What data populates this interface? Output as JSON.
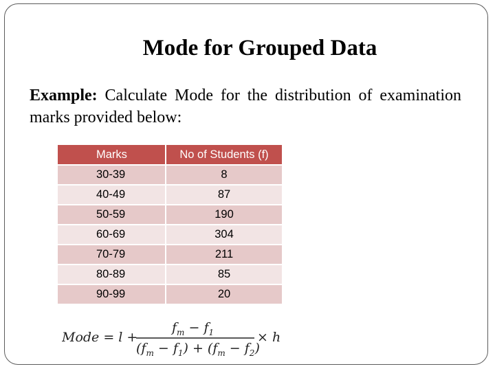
{
  "slide": {
    "title": "Mode for Grouped Data",
    "example_lead": "Example:",
    "example_text": " Calculate Mode for the distribution of examination marks provided below:"
  },
  "table": {
    "headers": [
      "Marks",
      "No of Students (f)"
    ],
    "rows": [
      {
        "marks": "30-39",
        "students": "8"
      },
      {
        "marks": "40-49",
        "students": "87"
      },
      {
        "marks": "50-59",
        "students": "190"
      },
      {
        "marks": "60-69",
        "students": "304"
      },
      {
        "marks": "70-79",
        "students": "211"
      },
      {
        "marks": "80-89",
        "students": "85"
      },
      {
        "marks": "90-99",
        "students": "20"
      }
    ]
  },
  "formula": {
    "lhs": "Mode = l +",
    "numerator_a": "f",
    "numerator_a_sub": "m",
    "numerator_op": " − ",
    "numerator_b": "f",
    "numerator_b_sub": "1",
    "den_open1": "(f",
    "den_sub1": "m",
    "den_mid1": " − f",
    "den_sub2": "1",
    "den_close1": ") + (f",
    "den_sub3": "m",
    "den_mid2": " − f",
    "den_sub4": "2",
    "den_close2": ")",
    "rhs": "× h"
  },
  "colors": {
    "header_bg": "#c0504d",
    "row_odd": "#e6c9c9",
    "row_even": "#f2e4e4"
  }
}
